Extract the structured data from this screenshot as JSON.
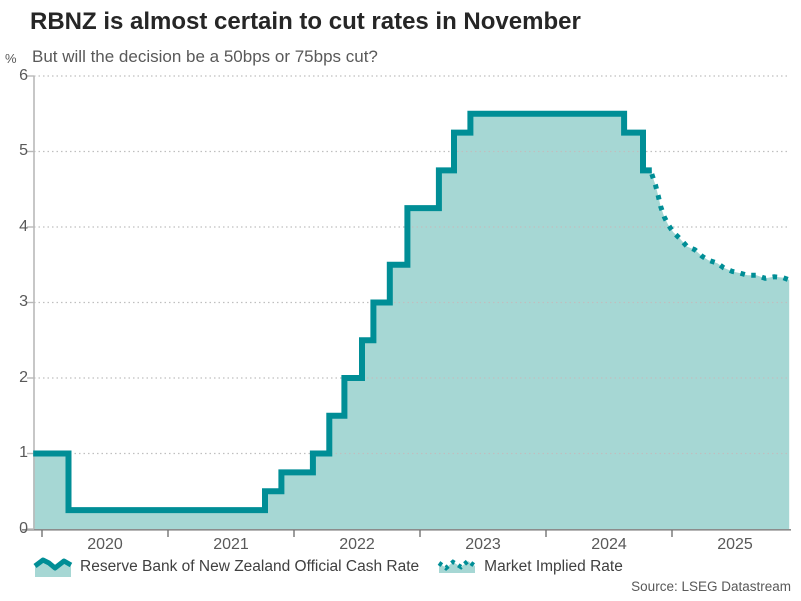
{
  "header": {
    "title": "RBNZ is almost certain to cut rates in November",
    "subtitle": "But will the decision be a 50bps or 75bps cut?"
  },
  "footer": {
    "source": "Source: LSEG Datastream"
  },
  "legend": {
    "items": [
      {
        "label": "Reserve Bank of New Zealand Official Cash Rate",
        "swatch": "area-line-icon"
      },
      {
        "label": "Market Implied Rate",
        "swatch": "dotted-line-icon"
      }
    ]
  },
  "chart_data": {
    "type": "area",
    "title": "RBNZ is almost certain to cut rates in November",
    "subtitle": "But will the decision be a 50bps or 75bps cut?",
    "unit": "%",
    "ylabel": "%",
    "xlabel": "",
    "ylim": [
      0,
      6
    ],
    "xlim": [
      2019.93,
      2025.95
    ],
    "y_ticks": [
      0,
      1,
      2,
      3,
      4,
      5,
      6
    ],
    "x_ticks": [
      2020,
      2021,
      2022,
      2023,
      2024,
      2025
    ],
    "grid": "dotted-horizontal",
    "legend_position": "bottom",
    "colors": {
      "line": "#008e96",
      "fill": "#a6d7d4",
      "grid": "#bfbfbf",
      "y_axis": "#b9b9b9",
      "x_axis": "#8c8c8c",
      "tick": "#737373"
    },
    "series": [
      {
        "name": "Reserve Bank of New Zealand Official Cash Rate",
        "style": "solid-step",
        "points": [
          [
            2019.93,
            1.0
          ],
          [
            2020.21,
            0.25
          ],
          [
            2021.77,
            0.5
          ],
          [
            2021.9,
            0.75
          ],
          [
            2022.15,
            1.0
          ],
          [
            2022.28,
            1.5
          ],
          [
            2022.4,
            2.0
          ],
          [
            2022.54,
            2.5
          ],
          [
            2022.63,
            3.0
          ],
          [
            2022.76,
            3.5
          ],
          [
            2022.9,
            4.25
          ],
          [
            2023.15,
            4.75
          ],
          [
            2023.27,
            5.25
          ],
          [
            2023.4,
            5.5
          ],
          [
            2024.62,
            5.25
          ],
          [
            2024.77,
            4.75
          ],
          [
            2024.84,
            4.75
          ]
        ]
      },
      {
        "name": "Market Implied Rate",
        "style": "dotted",
        "points": [
          [
            2024.84,
            4.7
          ],
          [
            2024.87,
            4.55
          ],
          [
            2024.89,
            4.42
          ],
          [
            2024.91,
            4.27
          ],
          [
            2024.94,
            4.13
          ],
          [
            2024.97,
            4.03
          ],
          [
            2025.01,
            3.93
          ],
          [
            2025.06,
            3.85
          ],
          [
            2025.12,
            3.74
          ],
          [
            2025.18,
            3.7
          ],
          [
            2025.24,
            3.61
          ],
          [
            2025.29,
            3.56
          ],
          [
            2025.36,
            3.52
          ],
          [
            2025.41,
            3.46
          ],
          [
            2025.48,
            3.41
          ],
          [
            2025.54,
            3.39
          ],
          [
            2025.6,
            3.36
          ],
          [
            2025.67,
            3.36
          ],
          [
            2025.74,
            3.32
          ],
          [
            2025.81,
            3.34
          ],
          [
            2025.88,
            3.33
          ],
          [
            2025.93,
            3.3
          ]
        ]
      }
    ]
  }
}
